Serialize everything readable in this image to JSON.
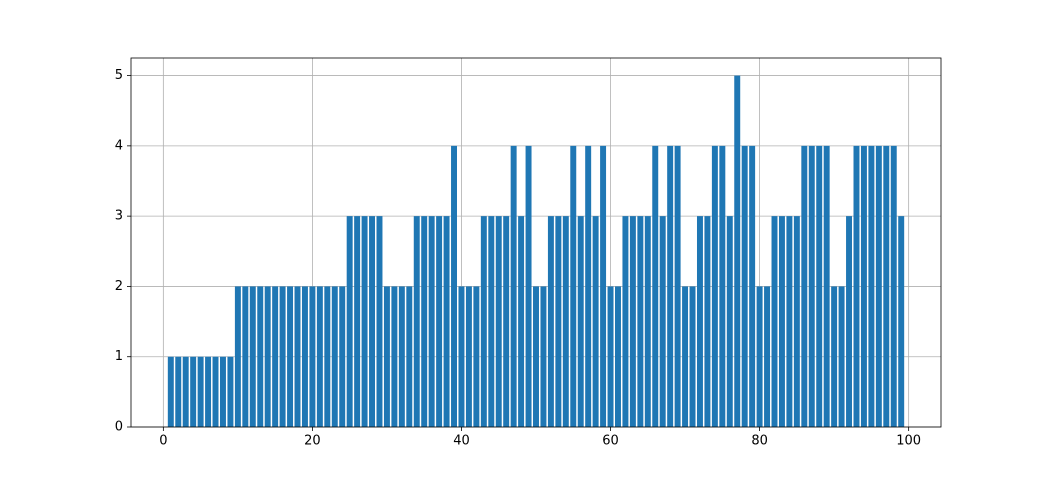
{
  "chart_data": {
    "type": "bar",
    "x": [
      1,
      2,
      3,
      4,
      5,
      6,
      7,
      8,
      9,
      10,
      11,
      12,
      13,
      14,
      15,
      16,
      17,
      18,
      19,
      20,
      21,
      22,
      23,
      24,
      25,
      26,
      27,
      28,
      29,
      30,
      31,
      32,
      33,
      34,
      35,
      36,
      37,
      38,
      39,
      40,
      41,
      42,
      43,
      44,
      45,
      46,
      47,
      48,
      49,
      50,
      51,
      52,
      53,
      54,
      55,
      56,
      57,
      58,
      59,
      60,
      61,
      62,
      63,
      64,
      65,
      66,
      67,
      68,
      69,
      70,
      71,
      72,
      73,
      74,
      75,
      76,
      77,
      78,
      79,
      80,
      81,
      82,
      83,
      84,
      85,
      86,
      87,
      88,
      89,
      90,
      91,
      92,
      93,
      94,
      95,
      96,
      97,
      98,
      99
    ],
    "values": [
      1,
      1,
      1,
      1,
      1,
      1,
      1,
      1,
      1,
      2,
      2,
      2,
      2,
      2,
      2,
      2,
      2,
      2,
      2,
      2,
      2,
      2,
      2,
      2,
      3,
      3,
      3,
      3,
      3,
      2,
      2,
      2,
      2,
      3,
      3,
      3,
      3,
      3,
      4,
      2,
      2,
      2,
      3,
      3,
      3,
      3,
      4,
      3,
      4,
      2,
      2,
      3,
      3,
      3,
      4,
      3,
      4,
      3,
      4,
      2,
      2,
      3,
      3,
      3,
      3,
      4,
      3,
      4,
      4,
      2,
      2,
      3,
      3,
      4,
      4,
      3,
      5,
      4,
      4,
      2,
      2,
      3,
      3,
      3,
      3,
      4,
      4,
      4,
      4,
      2,
      2,
      3,
      4,
      4,
      4,
      4,
      4,
      4,
      3
    ],
    "color": "#1f77b4",
    "xlim": [
      -4.34,
      104.34
    ],
    "xticks": [
      0,
      20,
      40,
      60,
      80,
      100
    ],
    "ylim": [
      0,
      5.25
    ],
    "yticks": [
      0,
      1,
      2,
      3,
      4,
      5
    ],
    "grid": true
  }
}
